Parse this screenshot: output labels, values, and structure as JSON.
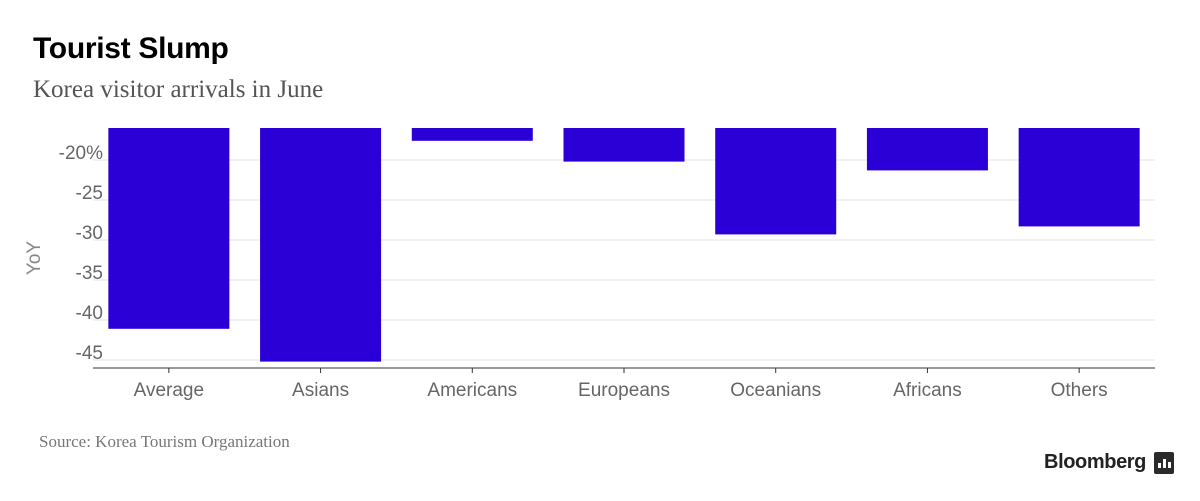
{
  "title": "Tourist Slump",
  "subtitle": "Korea visitor arrivals in June",
  "source": "Source: Korea Tourism Organization",
  "brand": "Bloomberg",
  "colors": {
    "bar": "#2b00d7",
    "grid": "#e6e6e6",
    "axis": "#333333",
    "tick_text": "#666666"
  },
  "chart_data": {
    "type": "bar",
    "categories": [
      "Average",
      "Asians",
      "Americans",
      "Europeans",
      "Oceanians",
      "Africans",
      "Others"
    ],
    "values": [
      -41.1,
      -45.2,
      -17.6,
      -20.2,
      -29.3,
      -21.3,
      -28.3
    ],
    "baseline": -16.0,
    "ylabel": "YoY",
    "ylim": [
      -46,
      -16
    ],
    "yticks": [
      -45,
      -40,
      -35,
      -30,
      -25,
      -20
    ],
    "ytick_labels": [
      "-45",
      "-40",
      "-35",
      "-30",
      "-25",
      "-20%"
    ],
    "grid": true
  }
}
